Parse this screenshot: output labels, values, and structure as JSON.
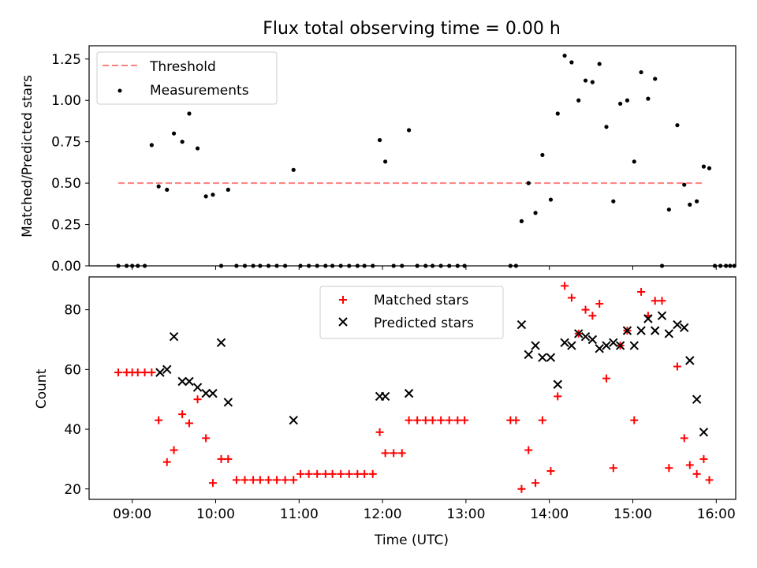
{
  "title": "Flux total observing time = 0.00 h",
  "chart_data": [
    {
      "type": "scatter",
      "panel": "top",
      "title": "Flux total observing time = 0.00 h",
      "xlabel": "",
      "ylabel": "Matched/Predicted stars",
      "xlim": [
        "08:29",
        "16:14"
      ],
      "ylim": [
        0.0,
        1.33
      ],
      "yticks": [
        0.0,
        0.25,
        0.5,
        0.75,
        1.0,
        1.25
      ],
      "ytick_labels": [
        "0.00",
        "0.25",
        "0.50",
        "0.75",
        "1.00",
        "1.25"
      ],
      "xticks": [
        "09:00",
        "10:00",
        "11:00",
        "12:00",
        "13:00",
        "14:00",
        "15:00",
        "16:00"
      ],
      "legend_position": "upper-left",
      "legend": [
        "Threshold",
        "Measurements"
      ],
      "series": [
        {
          "name": "Threshold",
          "style": "dashed-line",
          "color": "#ff7f7f",
          "x": [
            "08:50",
            "15:50"
          ],
          "y": [
            0.5,
            0.5
          ]
        },
        {
          "name": "Measurements",
          "style": "dot",
          "color": "#000000",
          "x": [
            "08:50",
            "08:56",
            "09:00",
            "09:04",
            "09:09",
            "09:14",
            "09:19",
            "09:25",
            "09:30",
            "09:36",
            "09:41",
            "09:47",
            "09:53",
            "09:58",
            "10:04",
            "10:09",
            "10:15",
            "10:21",
            "10:27",
            "10:32",
            "10:38",
            "10:44",
            "10:50",
            "10:56",
            "11:01",
            "11:07",
            "11:13",
            "11:19",
            "11:24",
            "11:30",
            "11:36",
            "11:42",
            "11:47",
            "11:53",
            "11:58",
            "12:02",
            "12:08",
            "12:14",
            "12:19",
            "12:25",
            "12:31",
            "12:36",
            "12:42",
            "12:48",
            "12:54",
            "12:59",
            "13:32",
            "13:36",
            "13:40",
            "13:45",
            "13:50",
            "13:55",
            "14:01",
            "14:06",
            "14:11",
            "14:16",
            "14:21",
            "14:26",
            "14:31",
            "14:36",
            "14:41",
            "14:46",
            "14:51",
            "14:56",
            "15:01",
            "15:06",
            "15:11",
            "15:16",
            "15:21",
            "15:26",
            "15:32",
            "15:37",
            "15:41",
            "15:46",
            "15:51",
            "15:55",
            "15:59",
            "16:03",
            "16:07",
            "16:10",
            "16:13"
          ],
          "y": [
            0.0,
            0.0,
            0.0,
            0.0,
            0.0,
            0.73,
            0.48,
            0.46,
            0.8,
            0.75,
            0.92,
            0.71,
            0.42,
            0.43,
            0.0,
            0.46,
            0.0,
            0.0,
            0.0,
            0.0,
            0.0,
            0.0,
            0.0,
            0.58,
            0.0,
            0.0,
            0.0,
            0.0,
            0.0,
            0.0,
            0.0,
            0.0,
            0.0,
            0.0,
            0.76,
            0.63,
            0.0,
            0.0,
            0.82,
            0.0,
            0.0,
            0.0,
            0.0,
            0.0,
            0.0,
            0.0,
            0.0,
            0.0,
            0.27,
            0.5,
            0.32,
            0.67,
            0.4,
            0.92,
            1.27,
            1.23,
            1.0,
            1.12,
            1.11,
            1.22,
            0.84,
            0.39,
            0.98,
            1.0,
            0.63,
            1.17,
            1.01,
            1.13,
            0.0,
            0.34,
            0.85,
            0.49,
            0.37,
            0.39,
            0.6,
            0.59,
            0.0,
            0.0,
            0.0,
            0.0,
            0.0
          ]
        }
      ]
    },
    {
      "type": "scatter",
      "panel": "bottom",
      "xlabel": "Time (UTC)",
      "ylabel": "Count",
      "xlim": [
        "08:29",
        "16:14"
      ],
      "ylim": [
        16.5,
        91
      ],
      "yticks": [
        20,
        40,
        60,
        80
      ],
      "xticks": [
        "09:00",
        "10:00",
        "11:00",
        "12:00",
        "13:00",
        "14:00",
        "15:00",
        "16:00"
      ],
      "legend_position": "upper-center",
      "legend": [
        "Matched stars",
        "Predicted stars"
      ],
      "series": [
        {
          "name": "Matched stars",
          "marker": "plus",
          "color": "#ff0000",
          "x": [
            "08:50",
            "08:56",
            "09:00",
            "09:04",
            "09:09",
            "09:14",
            "09:19",
            "09:25",
            "09:30",
            "09:36",
            "09:41",
            "09:47",
            "09:53",
            "09:58",
            "10:04",
            "10:09",
            "10:15",
            "10:21",
            "10:27",
            "10:32",
            "10:38",
            "10:44",
            "10:50",
            "10:56",
            "11:01",
            "11:07",
            "11:13",
            "11:19",
            "11:24",
            "11:30",
            "11:36",
            "11:42",
            "11:47",
            "11:53",
            "11:58",
            "12:02",
            "12:08",
            "12:14",
            "12:19",
            "12:25",
            "12:31",
            "12:36",
            "12:42",
            "12:48",
            "12:54",
            "12:59",
            "13:32",
            "13:36",
            "13:40",
            "13:45",
            "13:50",
            "13:55",
            "14:01",
            "14:06",
            "14:11",
            "14:16",
            "14:21",
            "14:26",
            "14:31",
            "14:36",
            "14:41",
            "14:46",
            "14:51",
            "14:56",
            "15:01",
            "15:06",
            "15:11",
            "15:16",
            "15:21",
            "15:26",
            "15:32",
            "15:37",
            "15:41",
            "15:46",
            "15:51",
            "15:55"
          ],
          "y": [
            59,
            59,
            59,
            59,
            59,
            59,
            43,
            29,
            33,
            45,
            42,
            50,
            37,
            22,
            30,
            30,
            23,
            23,
            23,
            23,
            23,
            23,
            23,
            23,
            25,
            25,
            25,
            25,
            25,
            25,
            25,
            25,
            25,
            25,
            39,
            32,
            32,
            32,
            43,
            43,
            43,
            43,
            43,
            43,
            43,
            43,
            43,
            43,
            20,
            33,
            22,
            43,
            26,
            51,
            88,
            84,
            72,
            80,
            78,
            82,
            57,
            27,
            68,
            73,
            43,
            86,
            78,
            83,
            83,
            27,
            61,
            37,
            28,
            25,
            30,
            23
          ]
        },
        {
          "name": "Predicted stars",
          "marker": "x",
          "color": "#000000",
          "x": [
            "09:20",
            "09:25",
            "09:30",
            "09:36",
            "09:41",
            "09:47",
            "09:53",
            "09:58",
            "10:04",
            "10:09",
            "10:15",
            "10:21",
            "10:27",
            "10:32",
            "10:38",
            "10:44",
            "10:50",
            "10:56",
            "11:01",
            "11:07",
            "11:13",
            "11:19",
            "11:24",
            "11:30",
            "11:36",
            "11:42",
            "11:47",
            "11:53",
            "11:58",
            "12:02",
            "12:08",
            "12:14",
            "12:19",
            "12:25",
            "12:31",
            "12:36",
            "12:42",
            "12:48",
            "12:54",
            "12:59",
            "13:32",
            "13:36",
            "13:40",
            "13:45",
            "13:50",
            "13:55",
            "14:01",
            "14:06",
            "14:11",
            "14:16",
            "14:21",
            "14:26",
            "14:31",
            "14:36",
            "14:41",
            "14:46",
            "14:51",
            "14:56",
            "15:01",
            "15:06",
            "15:11",
            "15:16",
            "15:21",
            "15:26",
            "15:32",
            "15:37",
            "15:41",
            "15:46",
            "15:51",
            "15:55"
          ],
          "y": [
            59,
            60,
            71,
            56,
            56,
            54,
            52,
            52,
            69,
            49,
            null,
            null,
            null,
            null,
            null,
            null,
            null,
            43,
            null,
            null,
            null,
            null,
            null,
            null,
            null,
            null,
            null,
            null,
            51,
            51,
            null,
            null,
            52,
            null,
            null,
            null,
            null,
            null,
            null,
            null,
            null,
            null,
            75,
            65,
            68,
            64,
            64,
            55,
            69,
            68,
            72,
            71,
            70,
            67,
            68,
            69,
            68,
            73,
            68,
            73,
            77,
            73,
            78,
            72,
            75,
            74,
            63,
            50,
            39,
            null
          ]
        }
      ]
    }
  ]
}
